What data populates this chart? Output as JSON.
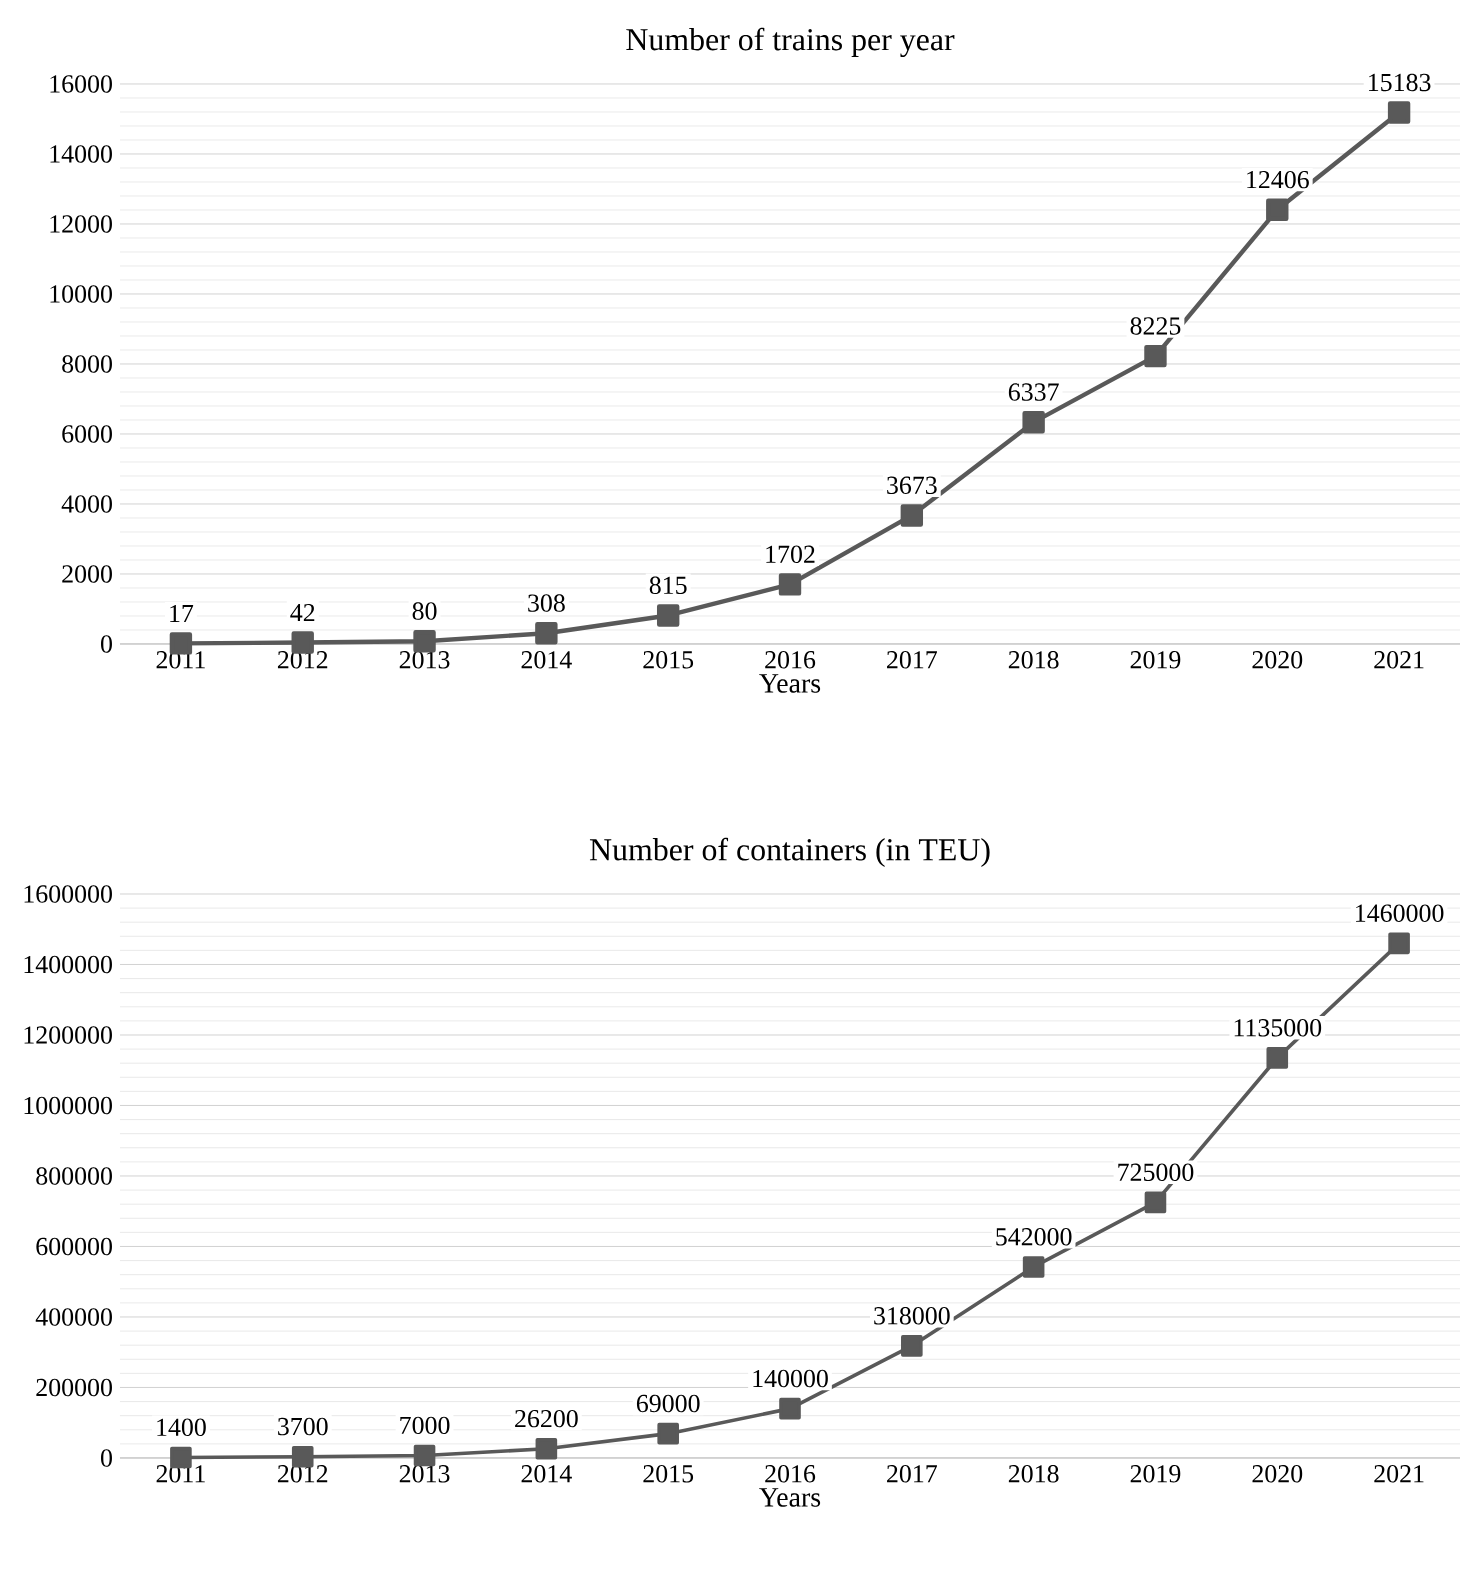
{
  "chart_data": [
    {
      "type": "line",
      "title": "Number of trains per year",
      "xlabel": "Years",
      "categories": [
        "2011",
        "2012",
        "2013",
        "2014",
        "2015",
        "2016",
        "2017",
        "2018",
        "2019",
        "2020",
        "2021"
      ],
      "values": [
        17,
        42,
        80,
        308,
        815,
        1702,
        3673,
        6337,
        8225,
        12406,
        15183
      ],
      "color": "#595959",
      "marker": "square",
      "line_style": "solid",
      "data_labels": true,
      "grid": "y",
      "ylim": [
        0,
        16000
      ],
      "yticks": [
        0,
        2000,
        4000,
        6000,
        8000,
        10000,
        12000,
        14000,
        16000
      ]
    },
    {
      "type": "line",
      "title": "Number of containers (in TEU)",
      "xlabel": "Years",
      "categories": [
        "2011",
        "2012",
        "2013",
        "2014",
        "2015",
        "2016",
        "2017",
        "2018",
        "2019",
        "2020",
        "2021"
      ],
      "values": [
        1400,
        3700,
        7000,
        26200,
        69000,
        140000,
        318000,
        542000,
        725000,
        1135000,
        1460000
      ],
      "color": "#595959",
      "marker": "square",
      "line_style": "solid",
      "data_labels": true,
      "grid": "y",
      "ylim": [
        0,
        1600000
      ],
      "yticks": [
        0,
        200000,
        400000,
        600000,
        800000,
        1000000,
        1200000,
        1400000,
        1600000
      ]
    }
  ]
}
